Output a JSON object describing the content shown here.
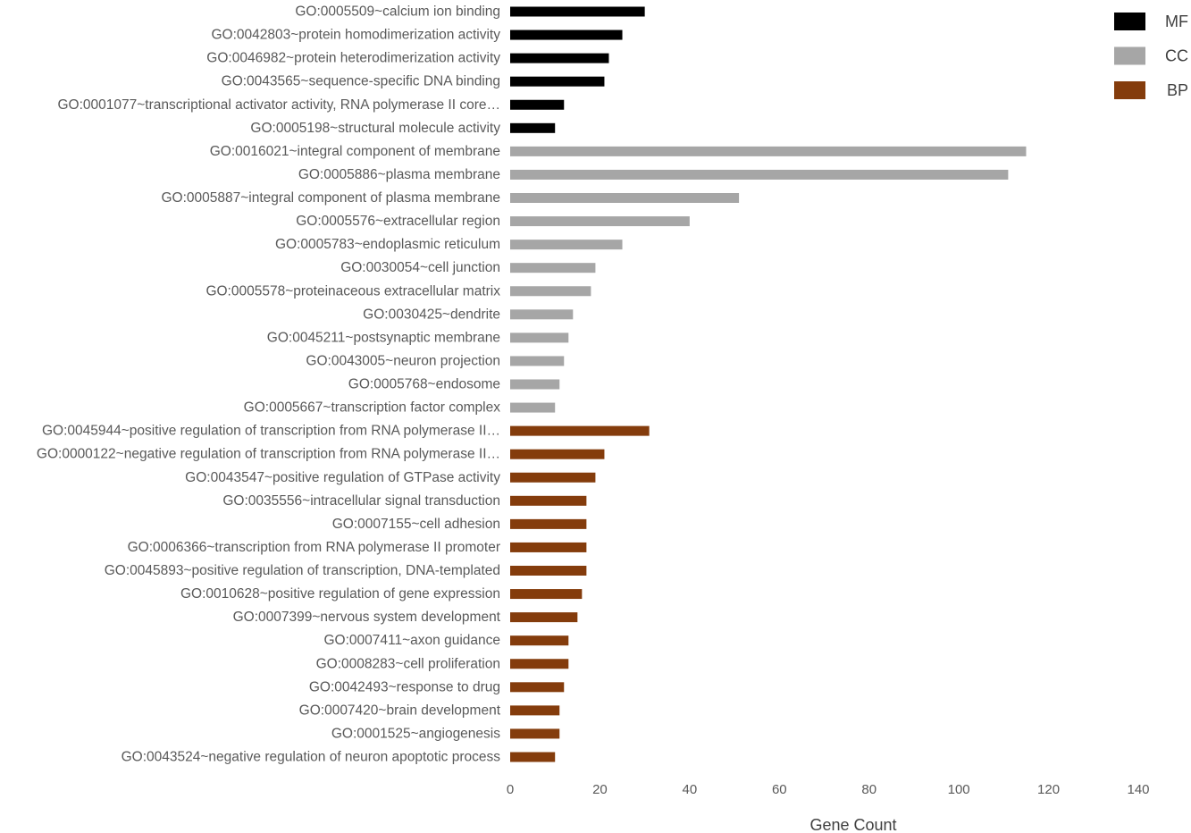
{
  "chart_data": {
    "type": "bar",
    "orientation": "horizontal",
    "title": "",
    "xlabel": "Gene Count",
    "ylabel": "",
    "xlim": [
      0,
      140
    ],
    "x_ticks": [
      0,
      20,
      40,
      60,
      80,
      100,
      120,
      140
    ],
    "grid": false,
    "legend_position": "top-right",
    "legend": [
      {
        "name": "MF",
        "color": "#000000"
      },
      {
        "name": "CC",
        "color": "#a6a6a6"
      },
      {
        "name": "BP",
        "color": "#843c0c"
      }
    ],
    "categories": [
      {
        "label": "GO:0005509~calcium ion binding",
        "value": 30,
        "group": "MF"
      },
      {
        "label": "GO:0042803~protein homodimerization activity",
        "value": 25,
        "group": "MF"
      },
      {
        "label": "GO:0046982~protein heterodimerization activity",
        "value": 22,
        "group": "MF"
      },
      {
        "label": "GO:0043565~sequence-specific DNA binding",
        "value": 21,
        "group": "MF"
      },
      {
        "label": "GO:0001077~transcriptional activator activity, RNA polymerase II core…",
        "value": 12,
        "group": "MF"
      },
      {
        "label": "GO:0005198~structural molecule activity",
        "value": 10,
        "group": "MF"
      },
      {
        "label": "GO:0016021~integral component of membrane",
        "value": 115,
        "group": "CC"
      },
      {
        "label": "GO:0005886~plasma membrane",
        "value": 111,
        "group": "CC"
      },
      {
        "label": "GO:0005887~integral component of plasma membrane",
        "value": 51,
        "group": "CC"
      },
      {
        "label": "GO:0005576~extracellular region",
        "value": 40,
        "group": "CC"
      },
      {
        "label": "GO:0005783~endoplasmic reticulum",
        "value": 25,
        "group": "CC"
      },
      {
        "label": "GO:0030054~cell junction",
        "value": 19,
        "group": "CC"
      },
      {
        "label": "GO:0005578~proteinaceous extracellular matrix",
        "value": 18,
        "group": "CC"
      },
      {
        "label": "GO:0030425~dendrite",
        "value": 14,
        "group": "CC"
      },
      {
        "label": "GO:0045211~postsynaptic membrane",
        "value": 13,
        "group": "CC"
      },
      {
        "label": "GO:0043005~neuron projection",
        "value": 12,
        "group": "CC"
      },
      {
        "label": "GO:0005768~endosome",
        "value": 11,
        "group": "CC"
      },
      {
        "label": "GO:0005667~transcription factor complex",
        "value": 10,
        "group": "CC"
      },
      {
        "label": "GO:0045944~positive regulation of transcription from RNA polymerase II…",
        "value": 31,
        "group": "BP"
      },
      {
        "label": "GO:0000122~negative regulation of transcription from RNA polymerase II…",
        "value": 21,
        "group": "BP"
      },
      {
        "label": "GO:0043547~positive regulation of GTPase activity",
        "value": 19,
        "group": "BP"
      },
      {
        "label": "GO:0035556~intracellular signal transduction",
        "value": 17,
        "group": "BP"
      },
      {
        "label": "GO:0007155~cell adhesion",
        "value": 17,
        "group": "BP"
      },
      {
        "label": "GO:0006366~transcription from RNA polymerase II promoter",
        "value": 17,
        "group": "BP"
      },
      {
        "label": "GO:0045893~positive regulation of transcription, DNA-templated",
        "value": 17,
        "group": "BP"
      },
      {
        "label": "GO:0010628~positive regulation of gene expression",
        "value": 16,
        "group": "BP"
      },
      {
        "label": "GO:0007399~nervous system development",
        "value": 15,
        "group": "BP"
      },
      {
        "label": "GO:0007411~axon guidance",
        "value": 13,
        "group": "BP"
      },
      {
        "label": "GO:0008283~cell proliferation",
        "value": 13,
        "group": "BP"
      },
      {
        "label": "GO:0042493~response to drug",
        "value": 12,
        "group": "BP"
      },
      {
        "label": "GO:0007420~brain development",
        "value": 11,
        "group": "BP"
      },
      {
        "label": "GO:0001525~angiogenesis",
        "value": 11,
        "group": "BP"
      },
      {
        "label": "GO:0043524~negative regulation of neuron apoptotic process",
        "value": 10,
        "group": "BP"
      }
    ]
  }
}
